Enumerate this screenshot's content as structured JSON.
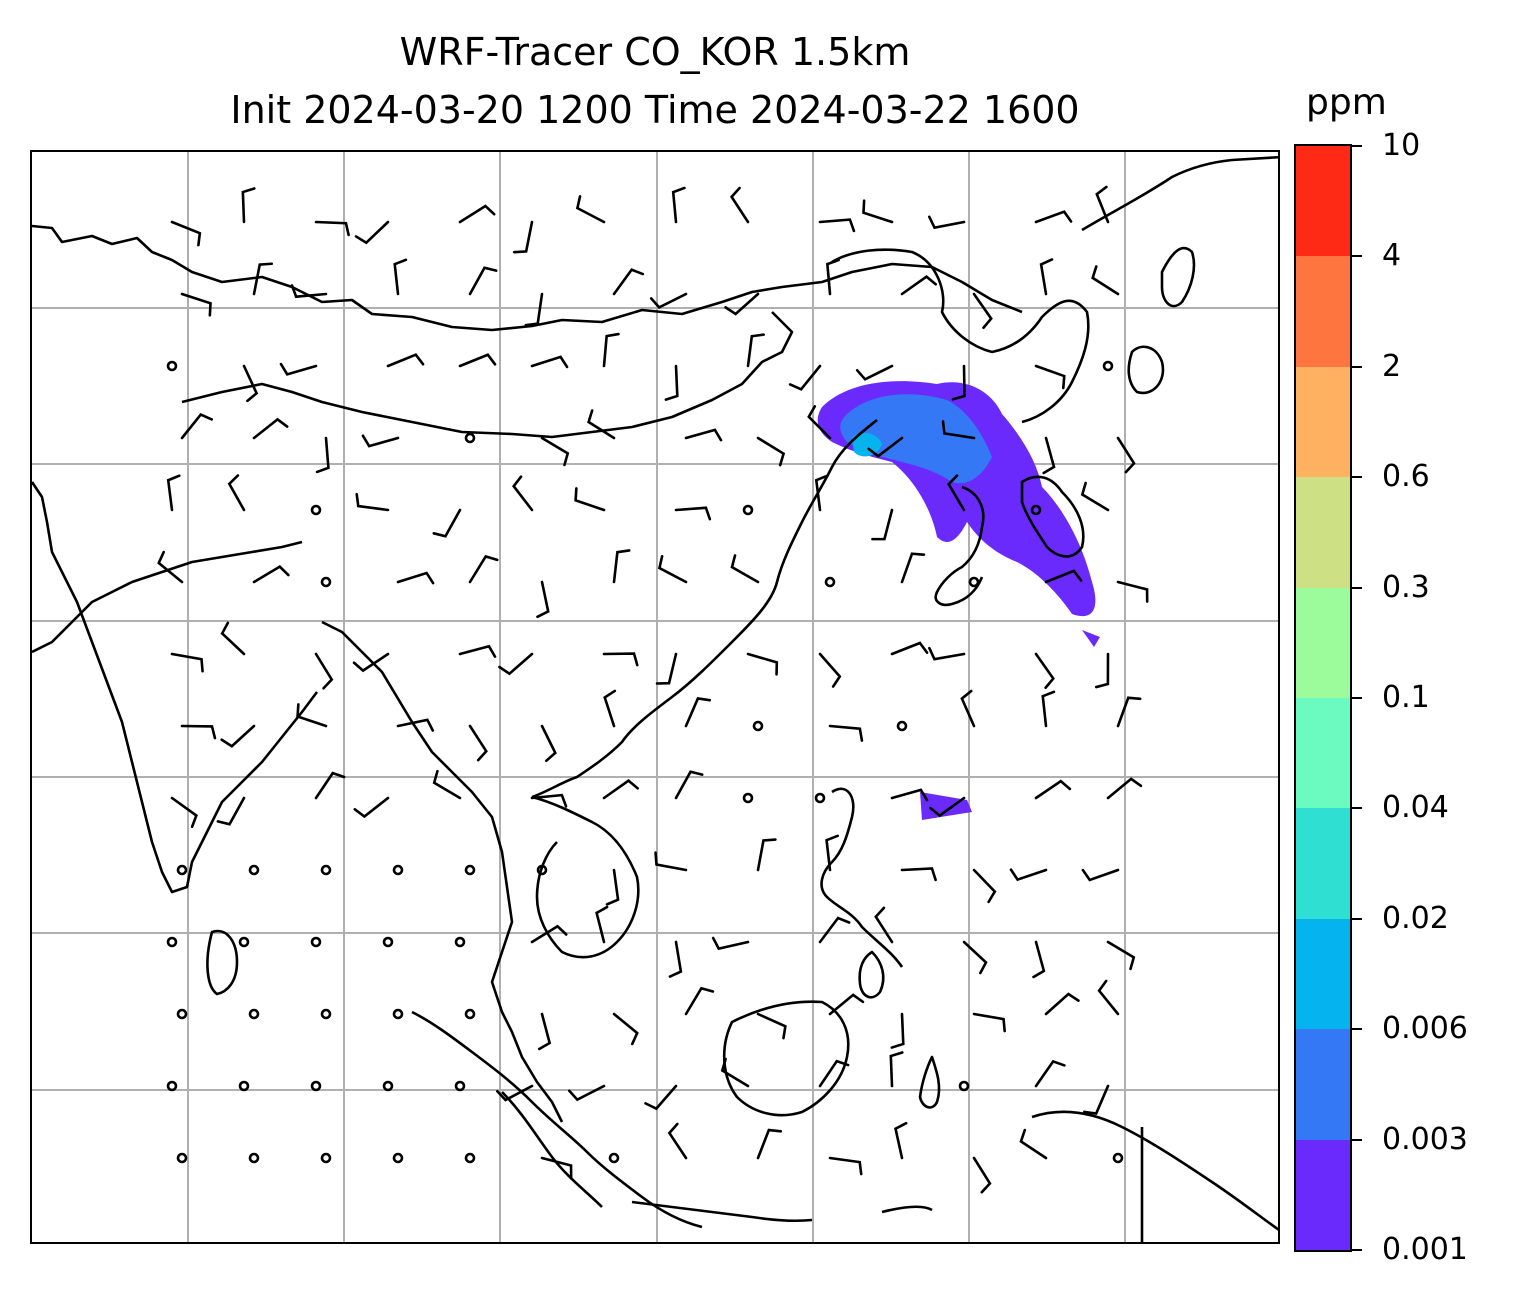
{
  "title": {
    "line1": "WRF-Tracer CO_KOR 1.5km",
    "line2": "Init 2024-03-20 1200 Time 2024-03-22 1600"
  },
  "colorbar": {
    "unit": "ppm",
    "levels": [
      "0.001",
      "0.003",
      "0.006",
      "0.02",
      "0.04",
      "0.1",
      "0.3",
      "0.6",
      "2",
      "4",
      "10"
    ],
    "colors": [
      "#6a2afc",
      "#3478f6",
      "#05b4ef",
      "#2fe0d2",
      "#6bfabf",
      "#9cfb9b",
      "#cde084",
      "#ffb162",
      "#ff7540",
      "#ff2a15"
    ]
  },
  "map": {
    "projection_grid": "on",
    "coastlines": "black",
    "tracer_plume_colors": [
      "#6a2afc",
      "#3478f6",
      "#05b4ef"
    ],
    "wind_barbs": "black"
  }
}
